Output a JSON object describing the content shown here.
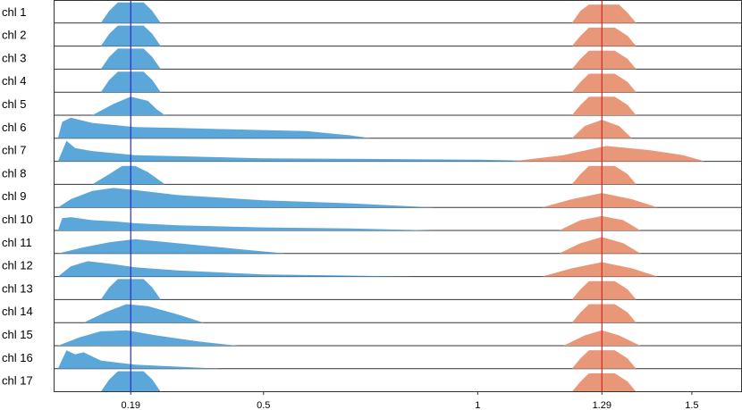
{
  "chart_data": {
    "type": "ridgeline",
    "rows": [
      "chl 1",
      "chl 2",
      "chl 3",
      "chl 4",
      "chl 5",
      "chl 6",
      "chl 7",
      "chl 8",
      "chl 9",
      "chl 10",
      "chl 11",
      "chl 12",
      "chl 13",
      "chl 14",
      "chl 15",
      "chl 16",
      "chl 17"
    ],
    "x_ticks": [
      {
        "value": 0.19,
        "label": "0.19"
      },
      {
        "value": 0.5,
        "label": "0.5"
      },
      {
        "value": 1,
        "label": "1"
      },
      {
        "value": 1.29,
        "label": "1.29"
      },
      {
        "value": 1.5,
        "label": "1.5"
      }
    ],
    "xlim": [
      0.01,
      1.615
    ],
    "reference_lines": [
      {
        "value": 0.19,
        "color": "#2a2ad0"
      },
      {
        "value": 1.29,
        "color": "#d62728"
      }
    ],
    "series": [
      {
        "color": "#5ca7d9",
        "rows": [
          [
            [
              0.12,
              0
            ],
            [
              0.14,
              0.6
            ],
            [
              0.16,
              1
            ],
            [
              0.22,
              1
            ],
            [
              0.24,
              0.6
            ],
            [
              0.26,
              0
            ]
          ],
          [
            [
              0.12,
              0
            ],
            [
              0.14,
              0.6
            ],
            [
              0.16,
              1
            ],
            [
              0.22,
              1
            ],
            [
              0.24,
              0.6
            ],
            [
              0.26,
              0
            ]
          ],
          [
            [
              0.12,
              0
            ],
            [
              0.14,
              0.6
            ],
            [
              0.16,
              1
            ],
            [
              0.22,
              1
            ],
            [
              0.24,
              0.6
            ],
            [
              0.26,
              0
            ]
          ],
          [
            [
              0.12,
              0
            ],
            [
              0.14,
              0.6
            ],
            [
              0.16,
              1
            ],
            [
              0.22,
              1
            ],
            [
              0.24,
              0.6
            ],
            [
              0.26,
              0
            ]
          ],
          [
            [
              0.1,
              0
            ],
            [
              0.15,
              0.55
            ],
            [
              0.19,
              0.9
            ],
            [
              0.23,
              0.7
            ],
            [
              0.25,
              0.3
            ],
            [
              0.27,
              0
            ]
          ],
          [
            [
              0.02,
              0
            ],
            [
              0.03,
              0.8
            ],
            [
              0.05,
              1
            ],
            [
              0.1,
              0.75
            ],
            [
              0.2,
              0.55
            ],
            [
              0.3,
              0.5
            ],
            [
              0.4,
              0.45
            ],
            [
              0.5,
              0.4
            ],
            [
              0.6,
              0.35
            ],
            [
              0.7,
              0.15
            ],
            [
              0.75,
              0
            ]
          ],
          [
            [
              0.02,
              0
            ],
            [
              0.04,
              1
            ],
            [
              0.06,
              0.65
            ],
            [
              0.1,
              0.5
            ],
            [
              0.2,
              0.3
            ],
            [
              0.3,
              0.25
            ],
            [
              0.5,
              0.15
            ],
            [
              0.7,
              0.12
            ],
            [
              1,
              0.08
            ],
            [
              1.2,
              0
            ]
          ],
          [
            [
              0.1,
              0
            ],
            [
              0.14,
              0.5
            ],
            [
              0.17,
              0.9
            ],
            [
              0.2,
              0.9
            ],
            [
              0.23,
              0.6
            ],
            [
              0.27,
              0
            ]
          ],
          [
            [
              0.02,
              0
            ],
            [
              0.05,
              0.4
            ],
            [
              0.1,
              0.8
            ],
            [
              0.15,
              0.95
            ],
            [
              0.2,
              0.85
            ],
            [
              0.3,
              0.6
            ],
            [
              0.5,
              0.35
            ],
            [
              0.7,
              0.2
            ],
            [
              0.85,
              0.05
            ],
            [
              0.9,
              0
            ]
          ],
          [
            [
              0.02,
              0
            ],
            [
              0.03,
              0.6
            ],
            [
              0.05,
              0.65
            ],
            [
              0.1,
              0.5
            ],
            [
              0.15,
              0.45
            ],
            [
              0.2,
              0.35
            ],
            [
              0.3,
              0.25
            ],
            [
              0.5,
              0.15
            ],
            [
              0.7,
              0.1
            ],
            [
              0.9,
              0
            ]
          ],
          [
            [
              0.02,
              0
            ],
            [
              0.08,
              0.3
            ],
            [
              0.14,
              0.55
            ],
            [
              0.2,
              0.7
            ],
            [
              0.25,
              0.6
            ],
            [
              0.35,
              0.4
            ],
            [
              0.45,
              0.2
            ],
            [
              0.55,
              0
            ]
          ],
          [
            [
              0.02,
              0
            ],
            [
              0.05,
              0.5
            ],
            [
              0.09,
              0.75
            ],
            [
              0.15,
              0.6
            ],
            [
              0.2,
              0.45
            ],
            [
              0.3,
              0.3
            ],
            [
              0.5,
              0.1
            ],
            [
              0.7,
              0.05
            ],
            [
              0.85,
              0
            ]
          ],
          [
            [
              0.12,
              0
            ],
            [
              0.14,
              0.6
            ],
            [
              0.16,
              1
            ],
            [
              0.22,
              1
            ],
            [
              0.24,
              0.6
            ],
            [
              0.26,
              0
            ]
          ],
          [
            [
              0.08,
              0
            ],
            [
              0.13,
              0.5
            ],
            [
              0.18,
              0.9
            ],
            [
              0.23,
              0.8
            ],
            [
              0.3,
              0.4
            ],
            [
              0.36,
              0
            ]
          ],
          [
            [
              0.02,
              0
            ],
            [
              0.07,
              0.4
            ],
            [
              0.12,
              0.7
            ],
            [
              0.18,
              0.75
            ],
            [
              0.25,
              0.5
            ],
            [
              0.35,
              0.2
            ],
            [
              0.44,
              0
            ]
          ],
          [
            [
              0.02,
              0
            ],
            [
              0.04,
              0.9
            ],
            [
              0.06,
              0.7
            ],
            [
              0.08,
              0.8
            ],
            [
              0.12,
              0.4
            ],
            [
              0.2,
              0.2
            ],
            [
              0.3,
              0.1
            ],
            [
              0.4,
              0
            ]
          ],
          [
            [
              0.12,
              0
            ],
            [
              0.14,
              0.6
            ],
            [
              0.16,
              1
            ],
            [
              0.22,
              1
            ],
            [
              0.24,
              0.6
            ],
            [
              0.26,
              0
            ]
          ]
        ]
      },
      {
        "color": "#e99779",
        "rows": [
          [
            [
              1.22,
              0
            ],
            [
              1.24,
              0.6
            ],
            [
              1.26,
              0.9
            ],
            [
              1.33,
              0.9
            ],
            [
              1.35,
              0.5
            ],
            [
              1.37,
              0
            ]
          ],
          [
            [
              1.22,
              0
            ],
            [
              1.24,
              0.5
            ],
            [
              1.26,
              0.9
            ],
            [
              1.32,
              0.9
            ],
            [
              1.35,
              0.5
            ],
            [
              1.37,
              0
            ]
          ],
          [
            [
              1.22,
              0
            ],
            [
              1.24,
              0.5
            ],
            [
              1.26,
              0.9
            ],
            [
              1.32,
              0.9
            ],
            [
              1.35,
              0.5
            ],
            [
              1.37,
              0
            ]
          ],
          [
            [
              1.22,
              0
            ],
            [
              1.24,
              0.5
            ],
            [
              1.26,
              0.9
            ],
            [
              1.32,
              0.9
            ],
            [
              1.35,
              0.5
            ],
            [
              1.37,
              0
            ]
          ],
          [
            [
              1.22,
              0
            ],
            [
              1.24,
              0.5
            ],
            [
              1.26,
              0.9
            ],
            [
              1.32,
              0.9
            ],
            [
              1.35,
              0.5
            ],
            [
              1.37,
              0
            ]
          ],
          [
            [
              1.22,
              0
            ],
            [
              1.25,
              0.6
            ],
            [
              1.29,
              0.9
            ],
            [
              1.33,
              0.6
            ],
            [
              1.36,
              0
            ]
          ],
          [
            [
              1.08,
              0
            ],
            [
              1.2,
              0.3
            ],
            [
              1.3,
              0.75
            ],
            [
              1.4,
              0.55
            ],
            [
              1.48,
              0.3
            ],
            [
              1.53,
              0
            ]
          ],
          [
            [
              1.22,
              0
            ],
            [
              1.24,
              0.5
            ],
            [
              1.26,
              0.9
            ],
            [
              1.32,
              0.9
            ],
            [
              1.35,
              0.5
            ],
            [
              1.37,
              0
            ]
          ],
          [
            [
              1.15,
              0
            ],
            [
              1.22,
              0.4
            ],
            [
              1.29,
              0.7
            ],
            [
              1.36,
              0.4
            ],
            [
              1.42,
              0
            ]
          ],
          [
            [
              1.19,
              0
            ],
            [
              1.24,
              0.5
            ],
            [
              1.29,
              0.7
            ],
            [
              1.34,
              0.5
            ],
            [
              1.38,
              0
            ]
          ],
          [
            [
              1.19,
              0
            ],
            [
              1.24,
              0.5
            ],
            [
              1.29,
              0.8
            ],
            [
              1.34,
              0.5
            ],
            [
              1.38,
              0
            ]
          ],
          [
            [
              1.15,
              0
            ],
            [
              1.22,
              0.4
            ],
            [
              1.29,
              0.7
            ],
            [
              1.36,
              0.4
            ],
            [
              1.42,
              0
            ]
          ],
          [
            [
              1.22,
              0
            ],
            [
              1.24,
              0.5
            ],
            [
              1.26,
              0.9
            ],
            [
              1.32,
              0.9
            ],
            [
              1.35,
              0.5
            ],
            [
              1.37,
              0
            ]
          ],
          [
            [
              1.22,
              0
            ],
            [
              1.24,
              0.5
            ],
            [
              1.26,
              0.9
            ],
            [
              1.32,
              0.9
            ],
            [
              1.35,
              0.5
            ],
            [
              1.37,
              0
            ]
          ],
          [
            [
              1.2,
              0
            ],
            [
              1.25,
              0.5
            ],
            [
              1.29,
              0.75
            ],
            [
              1.33,
              0.5
            ],
            [
              1.38,
              0
            ]
          ],
          [
            [
              1.22,
              0
            ],
            [
              1.24,
              0.5
            ],
            [
              1.26,
              0.9
            ],
            [
              1.32,
              0.9
            ],
            [
              1.35,
              0.5
            ],
            [
              1.37,
              0
            ]
          ],
          [
            [
              1.22,
              0
            ],
            [
              1.24,
              0.5
            ],
            [
              1.26,
              0.9
            ],
            [
              1.32,
              0.9
            ],
            [
              1.35,
              0.5
            ],
            [
              1.37,
              0
            ]
          ]
        ]
      }
    ]
  }
}
